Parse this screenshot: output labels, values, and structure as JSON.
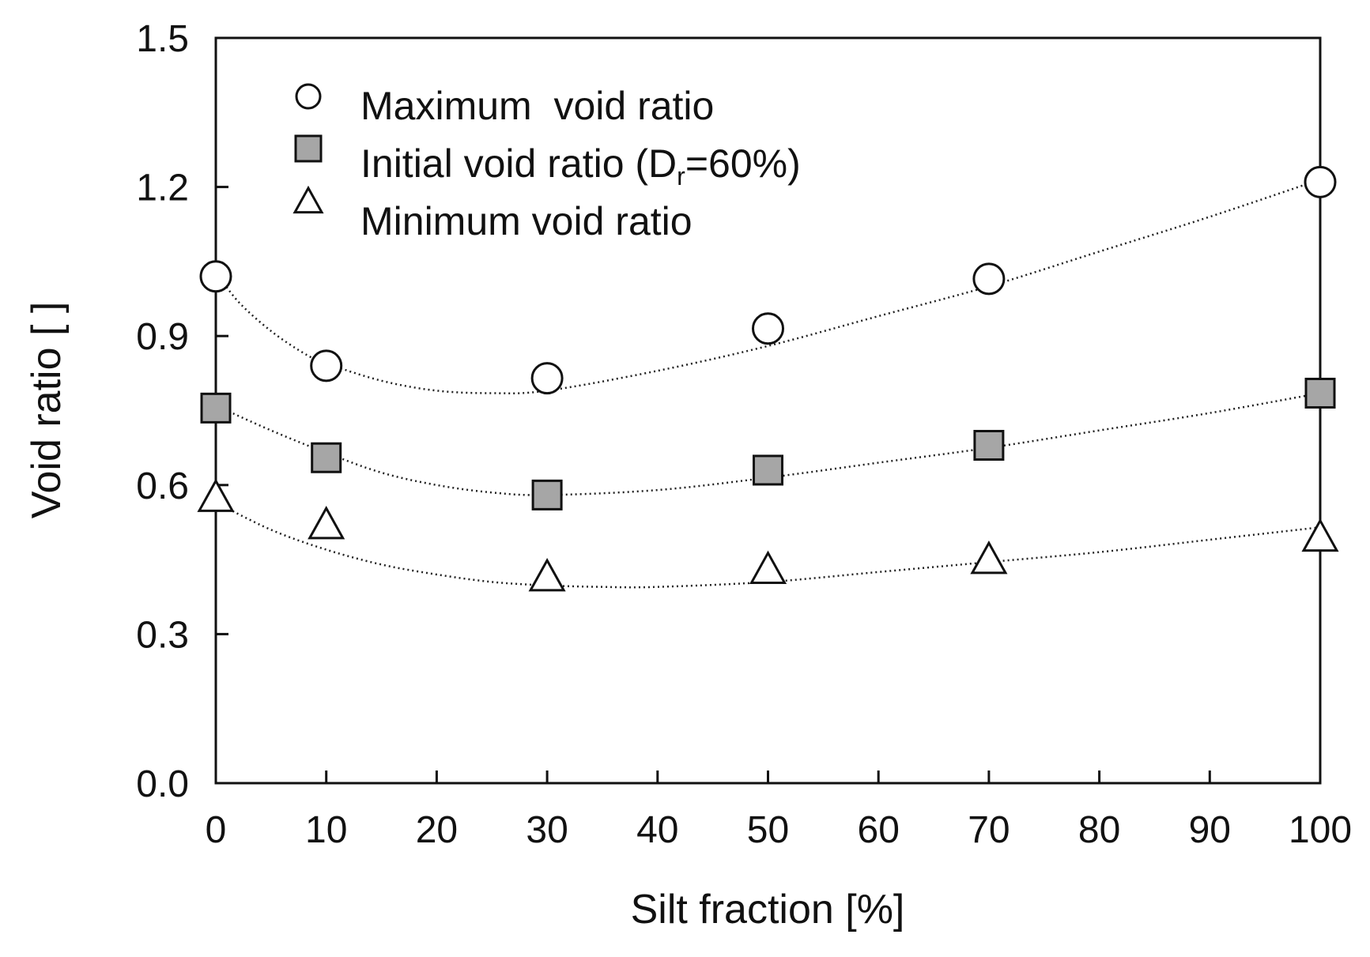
{
  "chart_data": {
    "type": "scatter",
    "title": "",
    "xlabel": "Silt fraction [%]",
    "ylabel": "Void ratio [ ]",
    "xlim": [
      0,
      100
    ],
    "ylim": [
      0.0,
      1.5
    ],
    "xticks": [
      0,
      10,
      20,
      30,
      40,
      50,
      60,
      70,
      80,
      90,
      100
    ],
    "xtick_labels": [
      "0",
      "10",
      "20",
      "30",
      "40",
      "50",
      "60",
      "70",
      "80",
      "90",
      "100"
    ],
    "yticks": [
      0.0,
      0.3,
      0.6,
      0.9,
      1.2,
      1.5
    ],
    "ytick_labels": [
      "0.0",
      "0.3",
      "0.6",
      "0.9",
      "1.2",
      "1.5"
    ],
    "grid": false,
    "legend_position": "top-left",
    "series": [
      {
        "name": "Maximum  void ratio",
        "marker": "open-circle",
        "x": [
          0,
          10,
          30,
          50,
          70,
          100
        ],
        "y": [
          1.02,
          0.84,
          0.815,
          0.915,
          1.015,
          1.21
        ],
        "trend": {
          "style": "dotted",
          "x": [
            0,
            2,
            5,
            8,
            10,
            15,
            20,
            25,
            30,
            40,
            50,
            60,
            70,
            80,
            90,
            100
          ],
          "y": [
            1.03,
            0.97,
            0.91,
            0.865,
            0.845,
            0.81,
            0.79,
            0.785,
            0.79,
            0.83,
            0.88,
            0.94,
            1.0,
            1.07,
            1.14,
            1.215
          ]
        }
      },
      {
        "name": "Initial void ratio (D",
        "name_subscript": "r",
        "name_suffix": "=60%)",
        "marker": "filled-square",
        "color": "#a6a6a6",
        "x": [
          0,
          10,
          30,
          50,
          70,
          100
        ],
        "y": [
          0.755,
          0.655,
          0.58,
          0.63,
          0.68,
          0.785
        ],
        "trend": {
          "style": "dotted",
          "x": [
            0,
            5,
            10,
            15,
            20,
            25,
            30,
            40,
            50,
            60,
            70,
            80,
            90,
            100
          ],
          "y": [
            0.76,
            0.71,
            0.665,
            0.625,
            0.6,
            0.585,
            0.58,
            0.59,
            0.615,
            0.645,
            0.675,
            0.71,
            0.745,
            0.785
          ]
        }
      },
      {
        "name": "Minimum void ratio",
        "marker": "open-triangle",
        "x": [
          0,
          10,
          30,
          50,
          70,
          100
        ],
        "y": [
          0.575,
          0.52,
          0.415,
          0.43,
          0.45,
          0.495
        ],
        "trend": {
          "style": "dotted",
          "x": [
            0,
            5,
            10,
            15,
            20,
            25,
            30,
            35,
            40,
            50,
            60,
            70,
            80,
            90,
            100
          ],
          "y": [
            0.565,
            0.51,
            0.47,
            0.44,
            0.42,
            0.405,
            0.398,
            0.395,
            0.395,
            0.405,
            0.425,
            0.445,
            0.465,
            0.49,
            0.515
          ]
        }
      }
    ]
  }
}
